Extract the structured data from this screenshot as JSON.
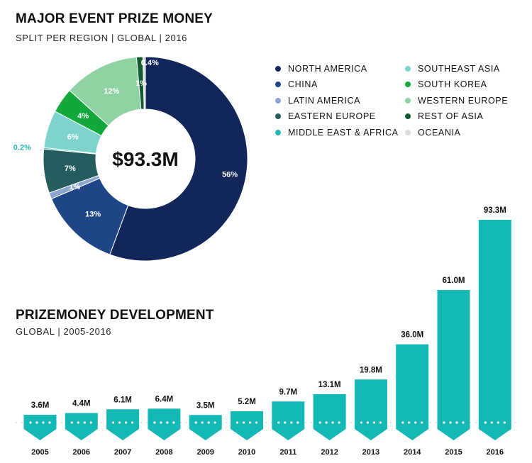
{
  "pie": {
    "title": "MAJOR EVENT PRIZE MONEY",
    "subtitle": "SPLIT PER REGION | GLOBAL | 2016",
    "center_label": "$93.3M"
  },
  "bars": {
    "title": "PRIZEMONEY DEVELOPMENT",
    "subtitle": "GLOBAL | 2005-2016"
  },
  "colors": {
    "north_america": "#13265a",
    "china": "#1e4586",
    "latin_america": "#8ca6cf",
    "eastern_europe": "#255d5e",
    "middle_east_africa": "#25b7b7",
    "southeast_asia": "#7fd3cd",
    "south_korea": "#12a83b",
    "western_europe": "#8fd2a4",
    "rest_of_asia": "#125c31",
    "oceania": "#dcdcdc",
    "bar": "#14b8b4"
  },
  "chart_data": [
    {
      "type": "pie",
      "title": "MAJOR EVENT PRIZE MONEY",
      "subtitle": "SPLIT PER REGION | GLOBAL | 2016",
      "total_label": "$93.3M",
      "slices": [
        {
          "name": "NORTH AMERICA",
          "value": 56,
          "label": "56%",
          "color": "#13265a"
        },
        {
          "name": "CHINA",
          "value": 13,
          "label": "13%",
          "color": "#1e4586"
        },
        {
          "name": "LATIN AMERICA",
          "value": 1,
          "label": "1%",
          "color": "#8ca6cf"
        },
        {
          "name": "EASTERN EUROPE",
          "value": 7,
          "label": "7%",
          "color": "#255d5e"
        },
        {
          "name": "MIDDLE EAST & AFRICA",
          "value": 0.2,
          "label": "0.2%",
          "color": "#25b7b7"
        },
        {
          "name": "SOUTHEAST ASIA",
          "value": 6,
          "label": "6%",
          "color": "#7fd3cd"
        },
        {
          "name": "SOUTH KOREA",
          "value": 4,
          "label": "4%",
          "color": "#12a83b"
        },
        {
          "name": "WESTERN EUROPE",
          "value": 12,
          "label": "12%",
          "color": "#8fd2a4"
        },
        {
          "name": "REST OF ASIA",
          "value": 1,
          "label": "1%",
          "color": "#125c31"
        },
        {
          "name": "OCEANIA",
          "value": 0.4,
          "label": "0.4%",
          "color": "#dcdcdc"
        }
      ],
      "legend_order": [
        "NORTH AMERICA",
        "CHINA",
        "LATIN AMERICA",
        "EASTERN EUROPE",
        "MIDDLE EAST & AFRICA",
        "SOUTHEAST ASIA",
        "SOUTH KOREA",
        "WESTERN EUROPE",
        "REST OF ASIA",
        "OCEANIA"
      ],
      "legend_placement": "right"
    },
    {
      "type": "bar",
      "title": "PRIZEMONEY DEVELOPMENT",
      "subtitle": "GLOBAL | 2005-2016",
      "categories": [
        "2005",
        "2006",
        "2007",
        "2008",
        "2009",
        "2010",
        "2011",
        "2012",
        "2013",
        "2014",
        "2015",
        "2016"
      ],
      "values": [
        3.6,
        4.4,
        6.1,
        6.4,
        3.5,
        5.2,
        9.7,
        13.1,
        19.8,
        36.0,
        61.0,
        93.3
      ],
      "value_labels": [
        "3.6M",
        "4.4M",
        "6.1M",
        "6.4M",
        "3.5M",
        "5.2M",
        "9.7M",
        "13.1M",
        "19.8M",
        "36.0M",
        "61.0M",
        "93.3M"
      ],
      "color": "#14b8b4",
      "grid": false
    }
  ]
}
